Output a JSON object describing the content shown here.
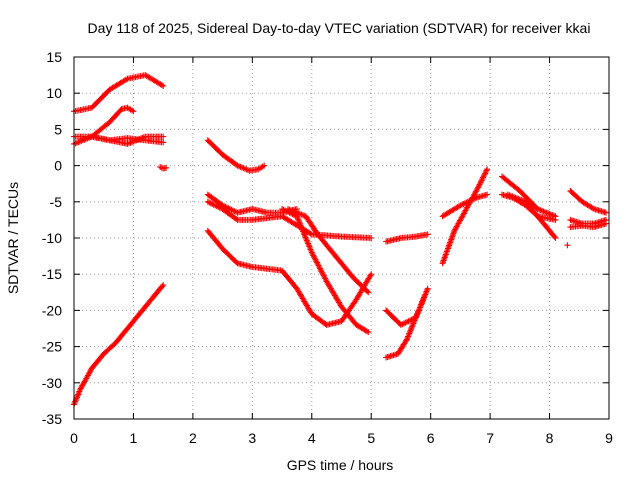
{
  "chart_data": {
    "type": "scatter",
    "title": "Day 118 of 2025, Sidereal Day-to-day VTEC variation (SDTVAR) for receiver kkai",
    "xlabel": "GPS time / hours",
    "ylabel": "SDTVAR / TECUs",
    "xlim": [
      0,
      9
    ],
    "ylim": [
      -35,
      15
    ],
    "xticks": [
      "0",
      "1",
      "2",
      "3",
      "4",
      "5",
      "6",
      "7",
      "8",
      "9"
    ],
    "yticks": [
      "-35",
      "-30",
      "-25",
      "-20",
      "-15",
      "-10",
      "-5",
      "0",
      "5",
      "10",
      "15"
    ],
    "grid": true,
    "marker": "plus",
    "color": "#ff0000",
    "series": [
      {
        "x": [
          0.0,
          0.3,
          0.6,
          0.9,
          1.2,
          1.5
        ],
        "y": [
          7.5,
          8.0,
          10.5,
          12.0,
          12.5,
          11.0
        ]
      },
      {
        "x": [
          0.3,
          0.6,
          0.8,
          0.9,
          1.0
        ],
        "y": [
          4.0,
          6.0,
          7.8,
          8.0,
          7.5
        ]
      },
      {
        "x": [
          0.0,
          0.3,
          0.6,
          0.9,
          1.2,
          1.5
        ],
        "y": [
          4.0,
          4.0,
          3.5,
          3.0,
          4.0,
          4.0
        ]
      },
      {
        "x": [
          0.0,
          0.3,
          0.6,
          0.9,
          1.2,
          1.5
        ],
        "y": [
          3.0,
          4.0,
          3.5,
          3.8,
          3.5,
          3.2
        ]
      },
      {
        "x": [
          1.45,
          1.5,
          1.55
        ],
        "y": [
          -0.2,
          -0.4,
          -0.3
        ]
      },
      {
        "x": [
          0.0,
          0.1,
          0.3,
          0.5,
          0.7,
          0.9,
          1.1,
          1.3,
          1.5
        ],
        "y": [
          -33.0,
          -31.0,
          -28.0,
          -26.0,
          -24.5,
          -22.5,
          -20.5,
          -18.5,
          -16.5
        ]
      },
      {
        "x": [
          2.25,
          2.5,
          2.75,
          2.95,
          3.1,
          3.2
        ],
        "y": [
          3.5,
          1.5,
          0.0,
          -0.7,
          -0.5,
          0.0
        ]
      },
      {
        "x": [
          2.25,
          2.5,
          2.75,
          3.0,
          3.25,
          3.5,
          3.75
        ],
        "y": [
          -4.0,
          -5.5,
          -6.5,
          -6.0,
          -6.5,
          -6.5,
          -6.0
        ]
      },
      {
        "x": [
          2.25,
          2.5,
          2.75,
          3.0,
          3.5,
          4.0,
          4.5,
          5.0
        ],
        "y": [
          -5.0,
          -6.0,
          -7.5,
          -7.5,
          -7.0,
          -9.5,
          -9.8,
          -10.0
        ]
      },
      {
        "x": [
          2.25,
          2.5,
          2.75,
          3.0,
          3.5,
          3.75,
          4.0,
          4.25,
          4.5,
          4.75,
          5.0
        ],
        "y": [
          -9.0,
          -11.5,
          -13.5,
          -14.0,
          -14.5,
          -17.0,
          -20.5,
          -22.0,
          -21.5,
          -18.5,
          -15.0
        ]
      },
      {
        "x": [
          3.5,
          3.75,
          4.0,
          4.25,
          4.5,
          4.75,
          4.95
        ],
        "y": [
          -6.0,
          -7.0,
          -12.0,
          -16.0,
          -19.5,
          -22.0,
          -23.0
        ]
      },
      {
        "x": [
          3.6,
          3.9,
          4.1,
          4.4,
          4.7,
          4.95
        ],
        "y": [
          -6.0,
          -7.0,
          -9.5,
          -12.5,
          -15.5,
          -17.5
        ]
      },
      {
        "x": [
          5.25,
          5.5,
          5.75,
          5.95
        ],
        "y": [
          -10.5,
          -10.0,
          -9.8,
          -9.5
        ]
      },
      {
        "x": [
          5.25,
          5.5,
          5.75,
          5.95
        ],
        "y": [
          -20.0,
          -22.0,
          -21.0,
          -17.0
        ]
      },
      {
        "x": [
          5.25,
          5.45,
          5.6,
          5.75,
          5.9
        ],
        "y": [
          -26.5,
          -26.0,
          -24.0,
          -21.0,
          -18.0
        ]
      },
      {
        "x": [
          6.2,
          6.5,
          6.75,
          6.95
        ],
        "y": [
          -7.0,
          -5.5,
          -4.5,
          -4.0
        ]
      },
      {
        "x": [
          6.2,
          6.4,
          6.6,
          6.8,
          6.95
        ],
        "y": [
          -13.5,
          -9.0,
          -6.0,
          -3.0,
          -0.5
        ]
      },
      {
        "x": [
          7.2,
          7.4,
          7.6,
          7.8,
          8.1
        ],
        "y": [
          -4.0,
          -4.5,
          -5.5,
          -7.0,
          -7.5
        ]
      },
      {
        "x": [
          7.2,
          7.5,
          7.8,
          8.1
        ],
        "y": [
          -1.5,
          -3.5,
          -6.0,
          -7.0
        ]
      },
      {
        "x": [
          7.3,
          7.6,
          7.9,
          8.1
        ],
        "y": [
          -4.0,
          -5.0,
          -8.0,
          -10.0
        ]
      },
      {
        "x": [
          8.35,
          8.55,
          8.75,
          8.95
        ],
        "y": [
          -3.5,
          -5.0,
          -6.0,
          -6.5
        ]
      },
      {
        "x": [
          8.35,
          8.55,
          8.75,
          8.95
        ],
        "y": [
          -7.5,
          -8.0,
          -8.0,
          -7.5
        ]
      },
      {
        "x": [
          8.35,
          8.55,
          8.75,
          8.95
        ],
        "y": [
          -8.5,
          -8.3,
          -8.5,
          -8.0
        ]
      },
      {
        "x": [
          8.3
        ],
        "y": [
          -11.0
        ]
      }
    ]
  }
}
